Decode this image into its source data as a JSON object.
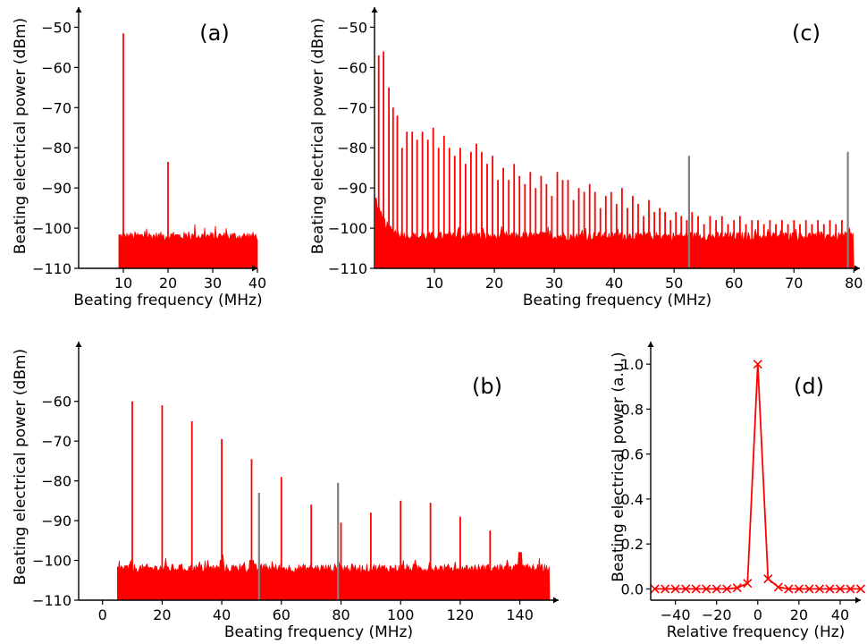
{
  "chart_data": [
    {
      "id": "a",
      "type": "line",
      "annotation": "(a)",
      "xlabel": "Beating frequency (MHz)",
      "ylabel": "Beating electrical power (dBm)",
      "xlim": [
        0,
        40
      ],
      "ylim": [
        -110,
        -45
      ],
      "xticks": [
        10,
        20,
        30,
        40
      ],
      "yticks": [
        -110,
        -100,
        -90,
        -80,
        -70,
        -60,
        -50
      ],
      "noise": {
        "x_range": [
          9,
          40
        ],
        "floor": -110,
        "top": -102,
        "bumps": [
          [
            26,
            -99
          ],
          [
            33,
            -100
          ]
        ]
      },
      "peaks": [
        {
          "x": 10,
          "y": -51.5,
          "color": "#ff0000"
        },
        {
          "x": 20,
          "y": -83.5,
          "color": "#ff0000"
        }
      ]
    },
    {
      "id": "c",
      "type": "line",
      "annotation": "(c)",
      "xlabel": "Beating frequency (MHz)",
      "ylabel": "Beating electrical power (dBm)",
      "xlim": [
        0,
        81
      ],
      "ylim": [
        -110,
        -45
      ],
      "xticks": [
        10,
        20,
        30,
        40,
        50,
        60,
        70,
        80
      ],
      "yticks": [
        -110,
        -100,
        -90,
        -80,
        -70,
        -60,
        -50
      ],
      "noise": {
        "x_range": [
          0.2,
          80
        ],
        "floor": -110,
        "top": -102,
        "low_freq_rise": -92
      },
      "peaks": [
        {
          "x": 0.7,
          "y": -57,
          "color": "#ff0000"
        },
        {
          "x": 1.5,
          "y": -56,
          "color": "#ff0000"
        },
        {
          "x": 2.4,
          "y": -65,
          "color": "#ff0000"
        },
        {
          "x": 3.1,
          "y": -70,
          "color": "#ff0000"
        },
        {
          "x": 3.8,
          "y": -72,
          "color": "#ff0000"
        },
        {
          "x": 4.6,
          "y": -80,
          "color": "#ff0000"
        },
        {
          "x": 5.4,
          "y": -76,
          "color": "#ff0000"
        },
        {
          "x": 6.3,
          "y": -76,
          "color": "#ff0000"
        },
        {
          "x": 7.1,
          "y": -78,
          "color": "#ff0000"
        },
        {
          "x": 8.0,
          "y": -76,
          "color": "#ff0000"
        },
        {
          "x": 8.9,
          "y": -78,
          "color": "#ff0000"
        },
        {
          "x": 9.8,
          "y": -75,
          "color": "#ff0000"
        },
        {
          "x": 10.7,
          "y": -80,
          "color": "#ff0000"
        },
        {
          "x": 11.6,
          "y": -77,
          "color": "#ff0000"
        },
        {
          "x": 12.5,
          "y": -80,
          "color": "#ff0000"
        },
        {
          "x": 13.4,
          "y": -82,
          "color": "#ff0000"
        },
        {
          "x": 14.3,
          "y": -80,
          "color": "#ff0000"
        },
        {
          "x": 15.2,
          "y": -84,
          "color": "#ff0000"
        },
        {
          "x": 16.1,
          "y": -81,
          "color": "#ff0000"
        },
        {
          "x": 17.0,
          "y": -79,
          "color": "#ff0000"
        },
        {
          "x": 17.9,
          "y": -81,
          "color": "#ff0000"
        },
        {
          "x": 18.8,
          "y": -84,
          "color": "#ff0000"
        },
        {
          "x": 19.7,
          "y": -82,
          "color": "#ff0000"
        },
        {
          "x": 20.6,
          "y": -88,
          "color": "#ff0000"
        },
        {
          "x": 21.5,
          "y": -85,
          "color": "#ff0000"
        },
        {
          "x": 22.4,
          "y": -88,
          "color": "#ff0000"
        },
        {
          "x": 23.3,
          "y": -84,
          "color": "#ff0000"
        },
        {
          "x": 24.2,
          "y": -87,
          "color": "#ff0000"
        },
        {
          "x": 25.1,
          "y": -89,
          "color": "#ff0000"
        },
        {
          "x": 26.0,
          "y": -86,
          "color": "#ff0000"
        },
        {
          "x": 26.9,
          "y": -90,
          "color": "#ff0000"
        },
        {
          "x": 27.8,
          "y": -87,
          "color": "#ff0000"
        },
        {
          "x": 28.7,
          "y": -89,
          "color": "#ff0000"
        },
        {
          "x": 29.6,
          "y": -92,
          "color": "#ff0000"
        },
        {
          "x": 30.5,
          "y": -86,
          "color": "#ff0000"
        },
        {
          "x": 31.4,
          "y": -88,
          "color": "#ff0000"
        },
        {
          "x": 32.3,
          "y": -88,
          "color": "#ff0000"
        },
        {
          "x": 33.2,
          "y": -93,
          "color": "#ff0000"
        },
        {
          "x": 34.1,
          "y": -90,
          "color": "#ff0000"
        },
        {
          "x": 35.0,
          "y": -91,
          "color": "#ff0000"
        },
        {
          "x": 35.9,
          "y": -89,
          "color": "#ff0000"
        },
        {
          "x": 36.8,
          "y": -91,
          "color": "#ff0000"
        },
        {
          "x": 37.7,
          "y": -95,
          "color": "#ff0000"
        },
        {
          "x": 38.6,
          "y": -92,
          "color": "#ff0000"
        },
        {
          "x": 39.5,
          "y": -91,
          "color": "#ff0000"
        },
        {
          "x": 40.4,
          "y": -94,
          "color": "#ff0000"
        },
        {
          "x": 41.3,
          "y": -90,
          "color": "#ff0000"
        },
        {
          "x": 42.2,
          "y": -95,
          "color": "#ff0000"
        },
        {
          "x": 43.1,
          "y": -92,
          "color": "#ff0000"
        },
        {
          "x": 44.0,
          "y": -94,
          "color": "#ff0000"
        },
        {
          "x": 44.9,
          "y": -97,
          "color": "#ff0000"
        },
        {
          "x": 45.8,
          "y": -93,
          "color": "#ff0000"
        },
        {
          "x": 46.7,
          "y": -96,
          "color": "#ff0000"
        },
        {
          "x": 47.6,
          "y": -95,
          "color": "#ff0000"
        },
        {
          "x": 48.5,
          "y": -96,
          "color": "#ff0000"
        },
        {
          "x": 49.4,
          "y": -98,
          "color": "#ff0000"
        },
        {
          "x": 50.3,
          "y": -96,
          "color": "#ff0000"
        },
        {
          "x": 51.2,
          "y": -97,
          "color": "#ff0000"
        },
        {
          "x": 52.1,
          "y": -98,
          "color": "#ff0000"
        },
        {
          "x": 53.0,
          "y": -96,
          "color": "#ff0000"
        },
        {
          "x": 54.0,
          "y": -97,
          "color": "#ff0000"
        },
        {
          "x": 55.0,
          "y": -99,
          "color": "#ff0000"
        },
        {
          "x": 56.0,
          "y": -97,
          "color": "#ff0000"
        },
        {
          "x": 57.0,
          "y": -98,
          "color": "#ff0000"
        },
        {
          "x": 58.0,
          "y": -97,
          "color": "#ff0000"
        },
        {
          "x": 59.0,
          "y": -99,
          "color": "#ff0000"
        },
        {
          "x": 60.0,
          "y": -98,
          "color": "#ff0000"
        },
        {
          "x": 61.0,
          "y": -97,
          "color": "#ff0000"
        },
        {
          "x": 62.0,
          "y": -99,
          "color": "#ff0000"
        },
        {
          "x": 63.0,
          "y": -98,
          "color": "#ff0000"
        },
        {
          "x": 64.0,
          "y": -98,
          "color": "#ff0000"
        },
        {
          "x": 65.0,
          "y": -99,
          "color": "#ff0000"
        },
        {
          "x": 66.0,
          "y": -98,
          "color": "#ff0000"
        },
        {
          "x": 67.0,
          "y": -99,
          "color": "#ff0000"
        },
        {
          "x": 68.0,
          "y": -98,
          "color": "#ff0000"
        },
        {
          "x": 69.0,
          "y": -99,
          "color": "#ff0000"
        },
        {
          "x": 70.0,
          "y": -98,
          "color": "#ff0000"
        },
        {
          "x": 71.0,
          "y": -99,
          "color": "#ff0000"
        },
        {
          "x": 72.0,
          "y": -98,
          "color": "#ff0000"
        },
        {
          "x": 73.0,
          "y": -99,
          "color": "#ff0000"
        },
        {
          "x": 74.0,
          "y": -98,
          "color": "#ff0000"
        },
        {
          "x": 75.0,
          "y": -99,
          "color": "#ff0000"
        },
        {
          "x": 76.0,
          "y": -98,
          "color": "#ff0000"
        },
        {
          "x": 77.0,
          "y": -99,
          "color": "#ff0000"
        },
        {
          "x": 78.0,
          "y": -98,
          "color": "#ff0000"
        },
        {
          "x": 52.5,
          "y": -82,
          "color": "#808080"
        },
        {
          "x": 79.0,
          "y": -81,
          "color": "#808080"
        }
      ]
    },
    {
      "id": "b",
      "type": "line",
      "annotation": "(b)",
      "xlabel": "Beating frequency (MHz)",
      "ylabel": "Beating electrical power (dBm)",
      "xlim": [
        -8,
        153
      ],
      "ylim": [
        -110,
        -45
      ],
      "xticks": [
        0,
        20,
        40,
        60,
        80,
        100,
        120,
        140
      ],
      "yticks": [
        -110,
        -100,
        -90,
        -80,
        -70,
        -60
      ],
      "noise": {
        "x_range": [
          5,
          150
        ],
        "floor": -110,
        "top": -102,
        "bumps": [
          [
            50,
            -100
          ],
          [
            140,
            -98
          ],
          [
            40,
            -100
          ]
        ]
      },
      "peaks": [
        {
          "x": 10,
          "y": -60,
          "color": "#ff0000"
        },
        {
          "x": 20,
          "y": -61,
          "color": "#ff0000"
        },
        {
          "x": 30,
          "y": -65,
          "color": "#ff0000"
        },
        {
          "x": 40,
          "y": -69.5,
          "color": "#ff0000"
        },
        {
          "x": 50,
          "y": -74.5,
          "color": "#ff0000"
        },
        {
          "x": 60,
          "y": -79,
          "color": "#ff0000"
        },
        {
          "x": 70,
          "y": -86,
          "color": "#ff0000"
        },
        {
          "x": 80,
          "y": -90.5,
          "color": "#ff0000"
        },
        {
          "x": 90,
          "y": -88,
          "color": "#ff0000"
        },
        {
          "x": 100,
          "y": -85,
          "color": "#ff0000"
        },
        {
          "x": 110,
          "y": -85.5,
          "color": "#ff0000"
        },
        {
          "x": 120,
          "y": -89,
          "color": "#ff0000"
        },
        {
          "x": 130,
          "y": -92.5,
          "color": "#ff0000"
        },
        {
          "x": 140,
          "y": -98,
          "color": "#ff0000"
        },
        {
          "x": 52.5,
          "y": -83,
          "color": "#808080"
        },
        {
          "x": 79,
          "y": -80.5,
          "color": "#808080"
        }
      ]
    },
    {
      "id": "d",
      "type": "line",
      "annotation": "(d)",
      "xlabel": "Relative frequency (Hz)",
      "ylabel": "Beating electrical power (a.u.)",
      "xlim": [
        -52,
        50
      ],
      "ylim": [
        -0.05,
        1.1
      ],
      "xticks": [
        -40,
        -20,
        0,
        20,
        40
      ],
      "yticks": [
        0.0,
        0.2,
        0.4,
        0.6,
        0.8,
        1.0
      ],
      "color": "#ff0000",
      "marker": "x",
      "series": [
        {
          "x": [
            -50,
            -45,
            -40,
            -35,
            -30,
            -25,
            -20,
            -15,
            -10,
            -5,
            0,
            5,
            10,
            15,
            20,
            25,
            30,
            35,
            40,
            45,
            50
          ],
          "y": [
            0,
            0,
            0,
            0,
            0,
            0,
            0,
            0,
            0.005,
            0.025,
            1.0,
            0.045,
            0.008,
            0,
            0,
            0,
            0,
            0,
            0,
            0,
            0
          ]
        }
      ]
    }
  ]
}
